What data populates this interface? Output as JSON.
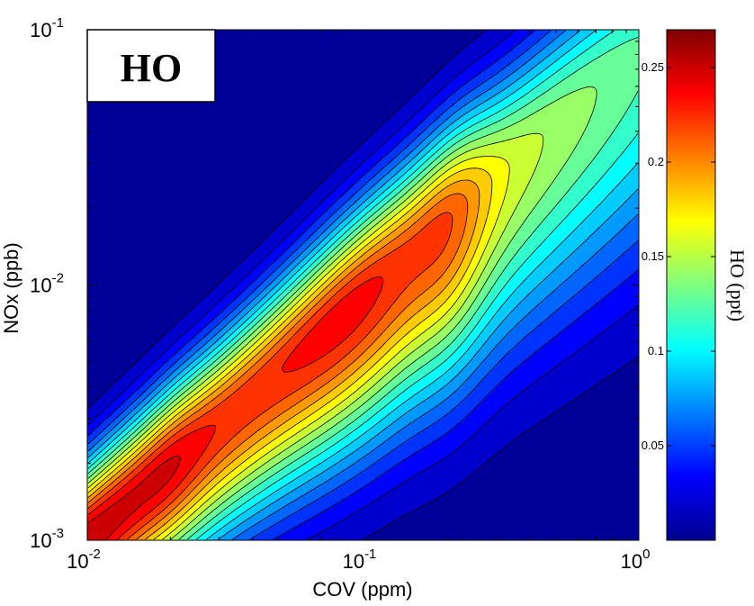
{
  "chart_data": {
    "type": "heatmap",
    "subtype": "filled-contour",
    "colormap": "jet",
    "title": "HO",
    "xlabel": "COV (ppm)",
    "ylabel": "NOx (ppb)",
    "xscale": "log",
    "yscale": "log",
    "xlim": [
      0.01,
      1
    ],
    "ylim": [
      0.001,
      0.1
    ],
    "x_ticks": [
      {
        "value": 0.01,
        "base": "10",
        "exp": "-2"
      },
      {
        "value": 0.1,
        "base": "10",
        "exp": "-1"
      },
      {
        "value": 1,
        "base": "10",
        "exp": "0"
      }
    ],
    "y_ticks": [
      {
        "value": 0.001,
        "base": "10",
        "exp": "-3"
      },
      {
        "value": 0.01,
        "base": "10",
        "exp": "-2"
      },
      {
        "value": 0.1,
        "base": "10",
        "exp": "-1"
      }
    ],
    "colorbar": {
      "label": "HO (ppt)",
      "range": [
        0,
        0.27
      ],
      "ticks": [
        "0.05",
        "0.1",
        "0.15",
        "0.2",
        "0.25"
      ],
      "tick_values": [
        0.05,
        0.1,
        0.15,
        0.2,
        0.25
      ]
    },
    "contour_levels": 20,
    "features": [
      {
        "x": 0.01,
        "y": 0.001,
        "value": 0.26,
        "note": "maximum region (dark red) at low COV, low NOx"
      },
      {
        "x": 0.02,
        "y": 0.002,
        "value": 0.25,
        "note": "local red peak"
      },
      {
        "x": 0.09,
        "y": 0.01,
        "value": 0.18,
        "note": "yellow ridge"
      },
      {
        "x": 0.2,
        "y": 0.02,
        "value": 0.17,
        "note": "yellow-green local maximum"
      },
      {
        "x": 0.7,
        "y": 0.09,
        "value": 0.13,
        "note": "green ridge at high COV and NOx"
      },
      {
        "x": 0.01,
        "y": 0.1,
        "value": 0.0,
        "note": "minimum (dark blue)"
      },
      {
        "x": 1,
        "y": 0.001,
        "value": 0.01,
        "note": "low values (blue)"
      }
    ]
  }
}
